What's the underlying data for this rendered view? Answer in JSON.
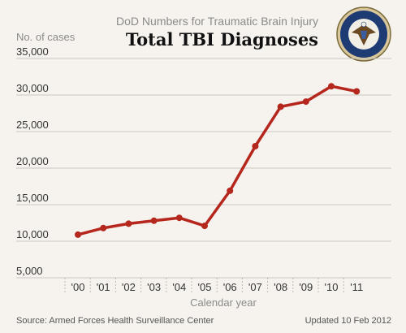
{
  "header": {
    "supertitle": "DoD Numbers for Traumatic Brain Injury",
    "title": "Total TBI Diagnoses",
    "logo_text": "DEPARTMENT OF DEFENSE · UNITED STATES OF AMERICA"
  },
  "footer": {
    "source": "Source: Armed Forces Health Surveillance Center",
    "updated": "Updated 10 Feb 2012"
  },
  "chart_data": {
    "type": "line",
    "title": "Total TBI Diagnoses",
    "ylabel": "No. of cases",
    "xlabel": "Calendar year",
    "categories": [
      "'00",
      "'01",
      "'02",
      "'03",
      "'04",
      "'05",
      "'06",
      "'07",
      "'08",
      "'09",
      "'10",
      "'11"
    ],
    "values": [
      10900,
      11800,
      12400,
      12800,
      13200,
      12100,
      16900,
      23000,
      28400,
      29100,
      31200,
      30500
    ],
    "ylim": [
      5000,
      35000
    ],
    "yticks": [
      "5,000",
      "10,000",
      "15,000",
      "20,000",
      "25,000",
      "30,000",
      "35,000"
    ],
    "ytick_values": [
      5000,
      10000,
      15000,
      20000,
      25000,
      30000,
      35000
    ],
    "grid": true,
    "line_color": "#b5271d",
    "legend": "none"
  }
}
